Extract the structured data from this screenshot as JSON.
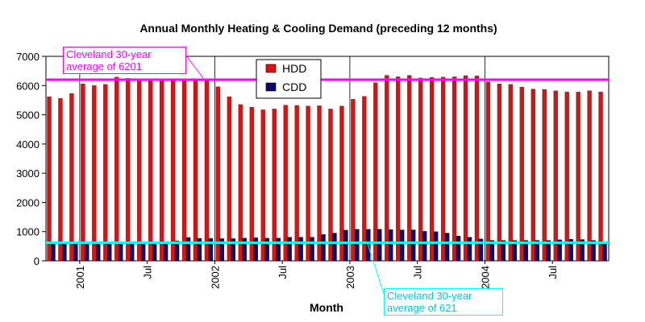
{
  "chart_data": {
    "type": "bar",
    "title": "Annual Monthly Heating & Cooling Demand (preceding 12 months)",
    "xlabel": "Month",
    "ylabel": "",
    "ylim": [
      0,
      7000
    ],
    "yticks": [
      0,
      1000,
      2000,
      3000,
      4000,
      5000,
      6000,
      7000
    ],
    "xtick_labels": [
      "2001",
      "Jul",
      "2002",
      "Jul",
      "2003",
      "Jul",
      "2004",
      "Jul"
    ],
    "xtick_positions": [
      3,
      9,
      15,
      21,
      27,
      33,
      39,
      45
    ],
    "grid": "vertical lines at January of each year",
    "legend_position": "top-center",
    "colors": {
      "hdd": "#dd1111",
      "cdd": "#0a0a6e",
      "hdd_avg": "#ff00ff",
      "cdd_avg": "#00ffff"
    },
    "series": [
      {
        "name": "HDD",
        "values": [
          5620,
          5560,
          5730,
          6060,
          6000,
          6040,
          6290,
          6250,
          6230,
          6200,
          6200,
          6230,
          6220,
          6230,
          6230,
          5960,
          5620,
          5350,
          5260,
          5170,
          5200,
          5330,
          5320,
          5300,
          5310,
          5200,
          5300,
          5530,
          5630,
          6100,
          6350,
          6300,
          6350,
          6260,
          6280,
          6290,
          6300,
          6340,
          6330,
          6130,
          6060,
          6040,
          5950,
          5880,
          5870,
          5820,
          5780,
          5780,
          5820,
          5780
        ]
      },
      {
        "name": "CDD",
        "values": [
          580,
          590,
          600,
          600,
          600,
          620,
          630,
          640,
          620,
          600,
          600,
          680,
          800,
          770,
          770,
          760,
          760,
          780,
          790,
          780,
          780,
          810,
          810,
          810,
          900,
          950,
          1050,
          1080,
          1080,
          1080,
          1070,
          1060,
          1060,
          1010,
          1000,
          950,
          850,
          810,
          750,
          700,
          700,
          700,
          700,
          700,
          700,
          720,
          740,
          730,
          700,
          640
        ]
      }
    ],
    "reference_lines": [
      {
        "name": "hdd_avg",
        "value": 6201,
        "label": "Cleveland 30-year\naverage of 6201"
      },
      {
        "name": "cdd_avg",
        "value": 621,
        "label": "Cleveland 30-year\naverage of 621"
      }
    ]
  }
}
